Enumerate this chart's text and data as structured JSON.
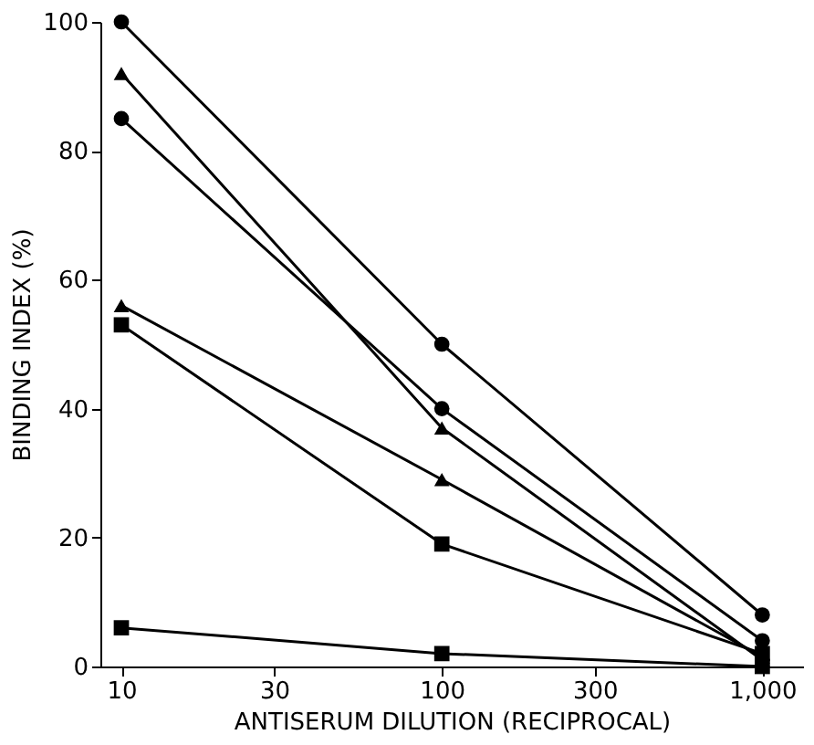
{
  "chart_data": {
    "type": "line",
    "xlabel": "ANTISERUM DILUTION (RECIPROCAL)",
    "ylabel": "BINDING INDEX (%)",
    "x": [
      10,
      100,
      1000
    ],
    "log": "x",
    "xlim": [
      8.6,
      1340
    ],
    "xticks": [
      10,
      30,
      100,
      300,
      {
        "value": 1000,
        "label": "1,000"
      }
    ],
    "ylim": [
      0,
      100
    ],
    "yticks": [
      0,
      20,
      40,
      60,
      80,
      100
    ],
    "grid": false,
    "legend": false,
    "series": [
      {
        "color": "#000000",
        "marker": "circle",
        "values": [
          100,
          50,
          8
        ]
      },
      {
        "color": "#000000",
        "marker": "triangle",
        "values": [
          92,
          37,
          1
        ]
      },
      {
        "color": "#000000",
        "marker": "circle",
        "values": [
          85,
          40,
          4
        ]
      },
      {
        "color": "#000000",
        "marker": "triangle",
        "values": [
          56,
          29,
          1.5
        ]
      },
      {
        "color": "#000000",
        "marker": "square",
        "values": [
          53,
          19,
          2
        ]
      },
      {
        "color": "#000000",
        "marker": "square",
        "values": [
          6,
          2,
          0
        ]
      }
    ]
  }
}
